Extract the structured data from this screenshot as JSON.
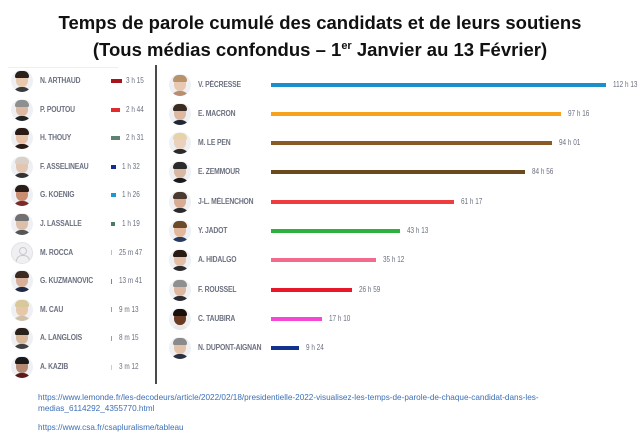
{
  "chart_data": {
    "type": "bar",
    "orientation": "horizontal",
    "title": "Temps de parole cumulé des candidats et de leurs soutiens",
    "subtitle_prefix": "(Tous médias confondus – 1",
    "subtitle_sup": "er",
    "subtitle_suffix": " Janvier au 13 Février)",
    "unit": "hours",
    "main_series": [
      {
        "name": "V. PÉCRESSE",
        "label": "112 h 13",
        "hours": 112.22,
        "color": "#1a8fc9"
      },
      {
        "name": "E. MACRON",
        "label": "97 h 16",
        "hours": 97.27,
        "color": "#f7a21b"
      },
      {
        "name": "M. LE PEN",
        "label": "94 h 01",
        "hours": 94.02,
        "color": "#8a5a24"
      },
      {
        "name": "E. ZEMMOUR",
        "label": "84 h 56",
        "hours": 84.93,
        "color": "#6b4a1e"
      },
      {
        "name": "J-L. MÉLENCHON",
        "label": "61 h 17",
        "hours": 61.28,
        "color": "#f03c3c"
      },
      {
        "name": "Y. JADOT",
        "label": "43 h 13",
        "hours": 43.22,
        "color": "#2db040"
      },
      {
        "name": "A. HIDALGO",
        "label": "35 h 12",
        "hours": 35.2,
        "color": "#f36b8c"
      },
      {
        "name": "F. ROUSSEL",
        "label": "26 h 59",
        "hours": 26.98,
        "color": "#e8182a"
      },
      {
        "name": "C. TAUBIRA",
        "label": "17 h 10",
        "hours": 17.17,
        "color": "#f447d6"
      },
      {
        "name": "N. DUPONT-AIGNAN",
        "label": "9 h 24",
        "hours": 9.4,
        "color": "#12328f"
      }
    ],
    "minor_series": [
      {
        "name": "N. ARTHAUD",
        "label": "3 h 15",
        "hours": 3.25,
        "color": "#a8141c"
      },
      {
        "name": "P. POUTOU",
        "label": "2 h 44",
        "hours": 2.73,
        "color": "#e02c2c"
      },
      {
        "name": "H. THOUY",
        "label": "2 h 31",
        "hours": 2.52,
        "color": "#5f8272"
      },
      {
        "name": "F. ASSELINEAU",
        "label": "1 h 32",
        "hours": 1.53,
        "color": "#142c96"
      },
      {
        "name": "G. KOENIG",
        "label": "1 h 26",
        "hours": 1.43,
        "color": "#1a9ad0"
      },
      {
        "name": "J. LASSALLE",
        "label": "1 h 19",
        "hours": 1.32,
        "color": "#4e7a64"
      },
      {
        "name": "M. ROCCA",
        "label": "25 m 47",
        "hours": 0.43,
        "color": "#f7a0b8"
      },
      {
        "name": "G. KUZMANOVIC",
        "label": "13 m 41",
        "hours": 0.23,
        "color": "#7a8a80"
      },
      {
        "name": "M. CAU",
        "label": "9 m 13",
        "hours": 0.15,
        "color": "#9aa0a8"
      },
      {
        "name": "A. LANGLOIS",
        "label": "8 m 15",
        "hours": 0.14,
        "color": "#9aa0a8"
      },
      {
        "name": "A. KAZIB",
        "label": "3 m 12",
        "hours": 0.05,
        "color": "#cccccc"
      }
    ]
  },
  "sources": {
    "lemonde_url": "https://www.lemonde.fr/les-decodeurs/article/2022/02/18/presidentielle-2022-visualisez-les-temps-de-parole-de-chaque-candidat-dans-les-medias_6114292_4355770.html",
    "csa_url": "https://www.csa.fr/csapluralisme/tableau"
  },
  "avatar_styles": {
    "minor": [
      {
        "skin": "#e9c9ad",
        "hair": "#2b211b",
        "body": "#3a3a3a"
      },
      {
        "skin": "#dcb9a0",
        "hair": "#8f8f8f",
        "body": "#222222"
      },
      {
        "skin": "#e7c2a7",
        "hair": "#2a1a14",
        "body": "#2a1a14"
      },
      {
        "skin": "#e2c6b2",
        "hair": "#d9d0c8",
        "body": "#333333"
      },
      {
        "skin": "#c98d70",
        "hair": "#2a1d18",
        "body": "#7a2a2a"
      },
      {
        "skin": "#dcbfa8",
        "hair": "#707070",
        "body": "#555555"
      },
      {
        "skin": "",
        "hair": "",
        "body": ""
      },
      {
        "skin": "#d8b099",
        "hair": "#3a2a22",
        "body": "#1f2a44"
      },
      {
        "skin": "#e6c7a8",
        "hair": "#d8c89a",
        "body": "#d0c0a8"
      },
      {
        "skin": "#d9b79a",
        "hair": "#2b211b",
        "body": "#404040"
      },
      {
        "skin": "#b58a72",
        "hair": "#1a1a1a",
        "body": "#5a1a1a"
      }
    ],
    "main": [
      {
        "skin": "#e8c8b0",
        "hair": "#b8926a",
        "body": "#b88d72"
      },
      {
        "skin": "#ddb9a2",
        "hair": "#3a2c22",
        "body": "#202838"
      },
      {
        "skin": "#ead0bd",
        "hair": "#e6d3a8",
        "body": "#2a2a2a"
      },
      {
        "skin": "#d8b8a2",
        "hair": "#2a2a2a",
        "body": "#1a1a1a"
      },
      {
        "skin": "#d8ac92",
        "hair": "#4a3a30",
        "body": "#2a2a2a"
      },
      {
        "skin": "#e2b89c",
        "hair": "#6b4a2a",
        "body": "#283a60"
      },
      {
        "skin": "#e2bea6",
        "hair": "#2a1a14",
        "body": "#2a2a2a"
      },
      {
        "skin": "#dcb8a2",
        "hair": "#8f8f8f",
        "body": "#2a2a30"
      },
      {
        "skin": "#6b3a24",
        "hair": "#1a0e0a",
        "body": "#e8e8e8"
      },
      {
        "skin": "#e2c2a8",
        "hair": "#8a8a8a",
        "body": "#2a3040"
      }
    ]
  }
}
